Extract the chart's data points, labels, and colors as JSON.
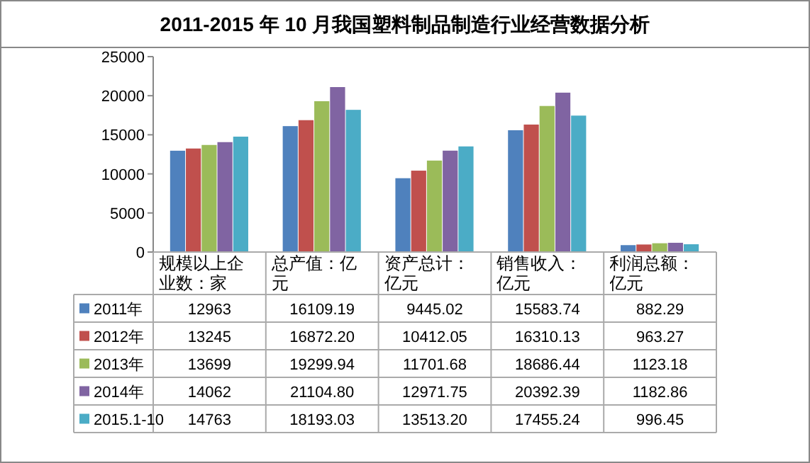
{
  "chart_data": {
    "type": "bar",
    "title": "2011-2015 年 10 月我国塑料制品制造行业经营数据分析",
    "categories": [
      "规模以上企业数：家",
      "总产值：亿元",
      "资产总计：亿元",
      "销售收入：亿元",
      "利润总额：亿元"
    ],
    "series": [
      {
        "name": "2011年",
        "color": "#4f81bd",
        "values": [
          12963,
          16109.19,
          9445.02,
          15583.74,
          882.29
        ],
        "value_labels": [
          "12963",
          "16109.19",
          "9445.02",
          "15583.74",
          "882.29"
        ]
      },
      {
        "name": "2012年",
        "color": "#c0504d",
        "values": [
          13245,
          16872.2,
          10412.05,
          16310.13,
          963.27
        ],
        "value_labels": [
          "13245",
          "16872.20",
          "10412.05",
          "16310.13",
          "963.27"
        ]
      },
      {
        "name": "2013年",
        "color": "#9bbb59",
        "values": [
          13699,
          19299.94,
          11701.68,
          18686.44,
          1123.18
        ],
        "value_labels": [
          "13699",
          "19299.94",
          "11701.68",
          "18686.44",
          "1123.18"
        ]
      },
      {
        "name": "2014年",
        "color": "#8064a2",
        "values": [
          14062,
          21104.8,
          12971.75,
          20392.39,
          1182.86
        ],
        "value_labels": [
          "14062",
          "21104.80",
          "12971.75",
          "20392.39",
          "1182.86"
        ]
      },
      {
        "name": "2015.1-10",
        "color": "#4bacc6",
        "values": [
          14763,
          18193.03,
          13513.2,
          17455.24,
          996.45
        ],
        "value_labels": [
          "14763",
          "18193.03",
          "13513.20",
          "17455.24",
          "996.45"
        ]
      }
    ],
    "ylim": [
      0,
      25000
    ],
    "yticks": [
      0,
      5000,
      10000,
      15000,
      20000,
      25000
    ],
    "grid": false,
    "legend": "bottom"
  }
}
